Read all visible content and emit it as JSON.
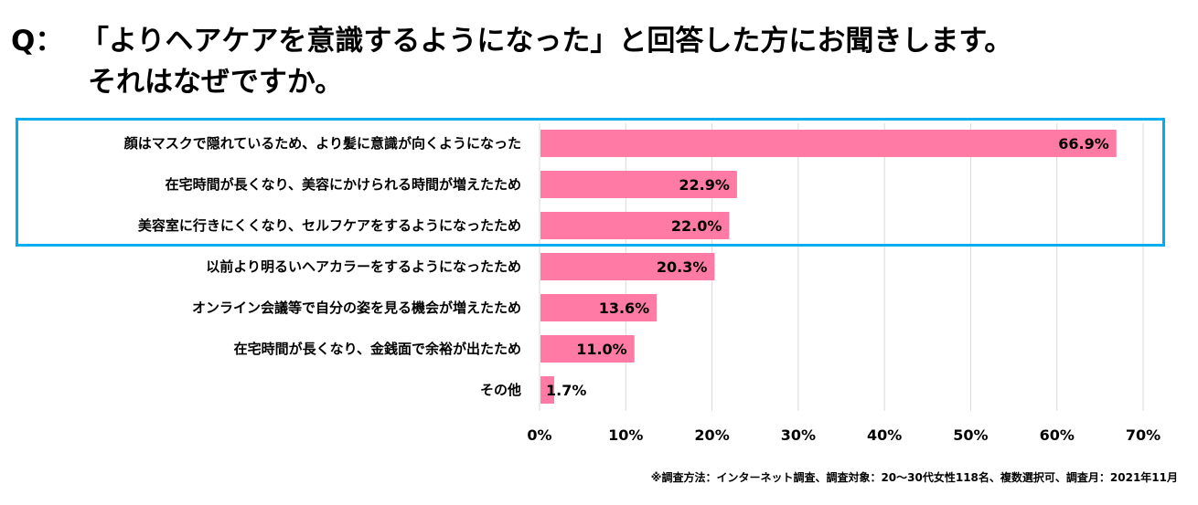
{
  "title": {
    "prefix": "Q：",
    "line1": "「よりヘアケアを意識するようになった」と回答した方にお聞きします。",
    "line2": "それはなぜですか。"
  },
  "colors": {
    "bar": "#FF7BA5",
    "highlight_border": "#00AEEF",
    "grid": "#D9D9D9"
  },
  "footnote": "※調査方法：インターネット調査、調査対象：20～30代女性118名、複数選択可、調査月：2021年11月",
  "chart_data": {
    "type": "bar",
    "orientation": "horizontal",
    "title": "Q：「よりヘアケアを意識するようになった」と回答した方にお聞きします。それはなぜですか。",
    "xlabel": "",
    "ylabel": "",
    "xlim": [
      0,
      70
    ],
    "grid": true,
    "categories": [
      "顔はマスクで隠れているため、より髪に意識が向くようになった",
      "在宅時間が長くなり、美容にかけられる時間が増えたため",
      "美容室に行きにくくなり、セルフケアをするようになったため",
      "以前より明るいヘアカラーをするようになったため",
      "オンライン会議等で自分の姿を見る機会が増えたため",
      "在宅時間が長くなり、金銭面で余裕が出たため",
      "その他"
    ],
    "values": [
      66.9,
      22.9,
      22.0,
      20.3,
      13.6,
      11.0,
      1.7
    ],
    "value_labels": [
      "66.9%",
      "22.9%",
      "22.0%",
      "20.3%",
      "13.6%",
      "11.0%",
      "1.7%"
    ],
    "ticks": [
      0,
      10,
      20,
      30,
      40,
      50,
      60,
      70
    ],
    "tick_labels": [
      "0%",
      "10%",
      "20%",
      "30%",
      "40%",
      "50%",
      "60%",
      "70%"
    ],
    "highlighted_categories": 3
  }
}
